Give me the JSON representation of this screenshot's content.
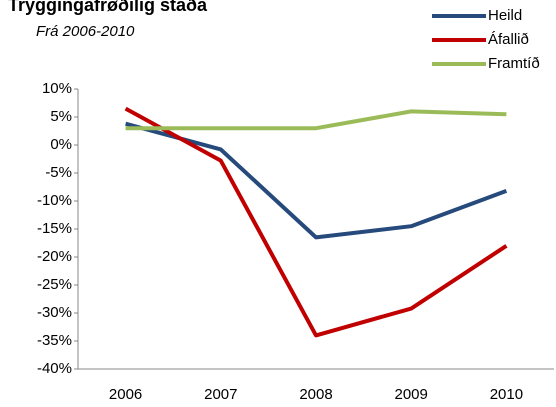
{
  "chart_data": {
    "type": "line",
    "title": "Tryggingafrøðilig staða",
    "subtitle": "Frá 2006-2010",
    "categories": [
      "2006",
      "2007",
      "2008",
      "2009",
      "2010"
    ],
    "series": [
      {
        "name": "Heild",
        "color": "#254a7b",
        "values": [
          3.8,
          -0.8,
          -16.5,
          -14.5,
          -8.2
        ]
      },
      {
        "name": "Áfallið",
        "color": "#c00000",
        "values": [
          6.5,
          -2.8,
          -34,
          -29.2,
          -18
        ]
      },
      {
        "name": "Framtíð",
        "color": "#9bbb59",
        "values": [
          3,
          3,
          3,
          6,
          5.5
        ]
      }
    ],
    "ylim": [
      -40,
      10
    ],
    "yticks": [
      {
        "value": 10,
        "label": "10%"
      },
      {
        "value": 5,
        "label": "5%"
      },
      {
        "value": 0,
        "label": "0%"
      },
      {
        "value": -5,
        "label": "-5%"
      },
      {
        "value": -10,
        "label": "-10%"
      },
      {
        "value": -15,
        "label": "-15%"
      },
      {
        "value": -20,
        "label": "-20%"
      },
      {
        "value": -25,
        "label": "-25%"
      },
      {
        "value": -30,
        "label": "-30%"
      },
      {
        "value": -35,
        "label": "-35%"
      },
      {
        "value": -40,
        "label": "-40%"
      }
    ],
    "legend": "top-right"
  }
}
